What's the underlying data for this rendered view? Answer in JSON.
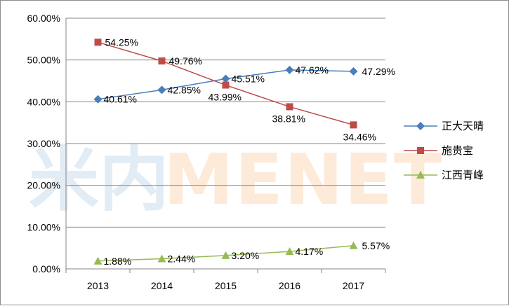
{
  "watermark": {
    "cn": "米内",
    "en": "MENET"
  },
  "chart_data": {
    "type": "line",
    "categories": [
      "2013",
      "2014",
      "2015",
      "2016",
      "2017"
    ],
    "ylim": [
      0,
      60
    ],
    "yticks": [
      "0.00%",
      "10.00%",
      "20.00%",
      "30.00%",
      "40.00%",
      "50.00%",
      "60.00%"
    ],
    "grid": true,
    "legend_position": "right",
    "series": [
      {
        "name": "正大天晴",
        "color": "#4a7ebb",
        "marker": "diamond",
        "values": [
          40.61,
          42.85,
          45.51,
          47.62,
          47.29
        ],
        "labels": [
          "40.61%",
          "42.85%",
          "45.51%",
          "47.62%",
          "47.29%"
        ]
      },
      {
        "name": "施贵宝",
        "color": "#be4b48",
        "marker": "square",
        "values": [
          54.25,
          49.76,
          43.99,
          38.81,
          34.46
        ],
        "labels": [
          "54.25%",
          "49.76%",
          "43.99%",
          "38.81%",
          "34.46%"
        ]
      },
      {
        "name": "江西青峰",
        "color": "#98b954",
        "marker": "triangle",
        "values": [
          1.88,
          2.44,
          3.2,
          4.17,
          5.57
        ],
        "labels": [
          "1.88%",
          "2.44%",
          "3.20%",
          "4.17%",
          "5.57%"
        ]
      }
    ]
  }
}
